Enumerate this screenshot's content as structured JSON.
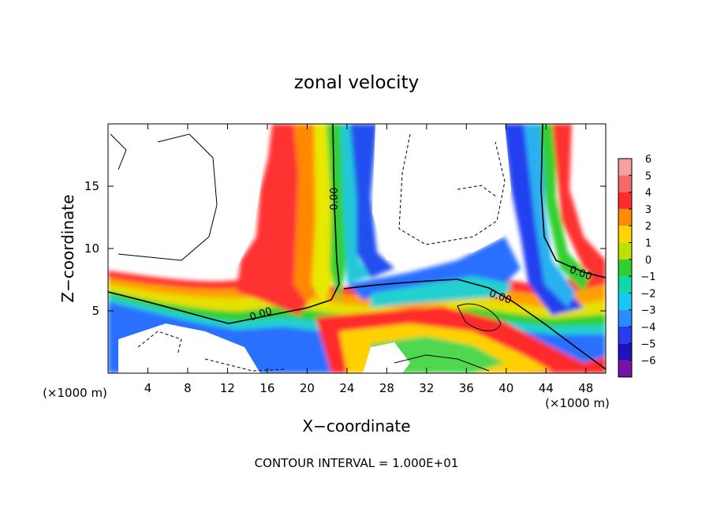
{
  "chart_data": {
    "type": "heatmap",
    "title": "zonal velocity",
    "xlabel": "X−coordinate",
    "ylabel": "Z−coordinate",
    "x_unit_left": "(×1000 m)",
    "x_unit_right": "(×1000 m)",
    "xlim": [
      0,
      50
    ],
    "ylim": [
      0,
      20
    ],
    "xticks": [
      4,
      8,
      12,
      16,
      20,
      24,
      28,
      32,
      36,
      40,
      44,
      48
    ],
    "yticks": [
      5,
      10,
      15
    ],
    "colorbar": {
      "levels": [
        6,
        5,
        4,
        3,
        2,
        1,
        0,
        -1,
        -2,
        -3,
        -4,
        -5,
        -6
      ],
      "labels": [
        "6",
        "5",
        "4",
        "3",
        "2",
        "1",
        "0",
        "−1",
        "−2",
        "−3",
        "−4",
        "−5",
        "−6"
      ],
      "colors": [
        "#f4a0a0",
        "#f86a6a",
        "#ff2c2c",
        "#ff8c00",
        "#ffd400",
        "#bfe000",
        "#2fd02f",
        "#10d8a8",
        "#19c8f0",
        "#2a8cff",
        "#2a3cf0",
        "#2010c0",
        "#7a10a8"
      ]
    },
    "contour_labels": [
      "0.00",
      "0.00",
      "0.00",
      "0.00"
    ],
    "footer": "CONTOUR INTERVAL = 1.000E+01"
  }
}
